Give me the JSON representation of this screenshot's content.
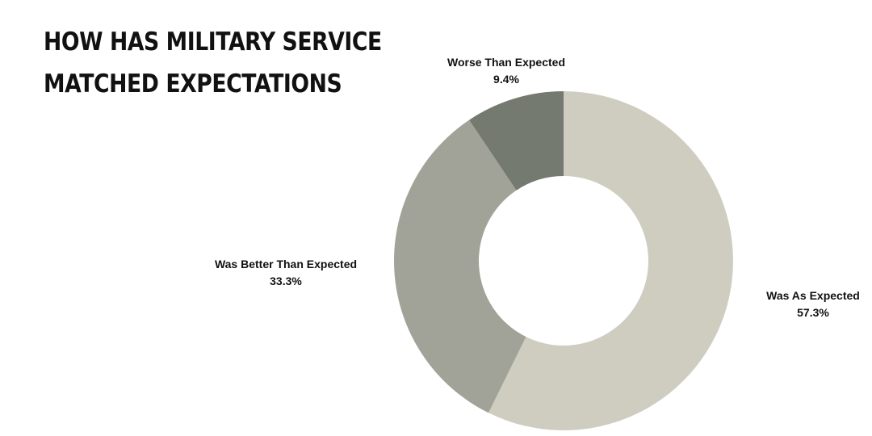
{
  "chart_data": {
    "type": "donut",
    "title_lines": [
      "HOW HAS MILITARY SERVICE",
      "MATCHED EXPECTATIONS"
    ],
    "slices": [
      {
        "label": "Was As Expected",
        "value": 57.3,
        "value_label": "57.3%",
        "color": "#cecdc0"
      },
      {
        "label": "Was Better Than Expected",
        "value": 33.3,
        "value_label": "33.3%",
        "color": "#a2a398"
      },
      {
        "label": "Worse Than Expected",
        "value": 9.4,
        "value_label": "9.4%",
        "color": "#747a70"
      }
    ],
    "start": "12 o'clock",
    "direction": "clockwise",
    "legend": "none"
  }
}
